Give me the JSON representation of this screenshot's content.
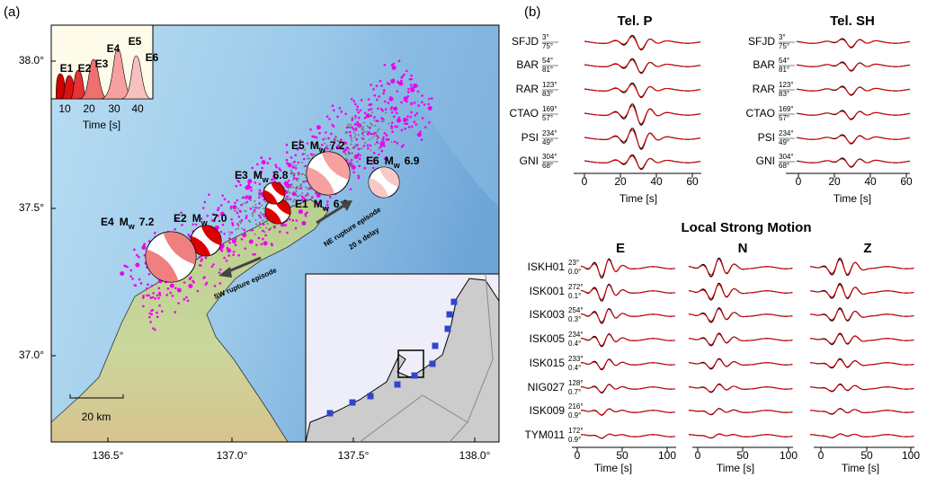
{
  "panel_a": {
    "label": "(a)",
    "lat_ticks": [
      "38.0°",
      "37.5°",
      "37.0°"
    ],
    "lon_ticks": [
      "136.5°",
      "137.0°",
      "137.5°",
      "138.0°"
    ],
    "scale_bar": "20 km",
    "mag_symbol": "M",
    "mag_sub": "w",
    "events": [
      {
        "id": "E1",
        "mag": "6.9"
      },
      {
        "id": "E2",
        "mag": "7.0"
      },
      {
        "id": "E3",
        "mag": "6.8"
      },
      {
        "id": "E4",
        "mag": "7.2"
      },
      {
        "id": "E5",
        "mag": "7.2"
      },
      {
        "id": "E6",
        "mag": "6.9"
      }
    ],
    "annotations": {
      "ne": "NE rupture episode",
      "delay": "20 s delay",
      "sw": "SW rupture episode"
    },
    "inset": {
      "events": [
        "E1",
        "E2",
        "E3",
        "E4",
        "E5",
        "E6"
      ],
      "xticks": [
        "10",
        "20",
        "30",
        "40"
      ],
      "xlabel": "Time [s]"
    }
  },
  "panel_b": {
    "label": "(b)",
    "teleseismic": {
      "panels": [
        {
          "title": "Tel. P"
        },
        {
          "title": "Tel. SH"
        }
      ],
      "stations": [
        {
          "name": "SFJD",
          "az": "3°",
          "dist": "75°"
        },
        {
          "name": "BAR",
          "az": "54°",
          "dist": "81°"
        },
        {
          "name": "RAR",
          "az": "123°",
          "dist": "83°"
        },
        {
          "name": "CTAO",
          "az": "169°",
          "dist": "57°"
        },
        {
          "name": "PSI",
          "az": "234°",
          "dist": "49°"
        },
        {
          "name": "GNI",
          "az": "304°",
          "dist": "68°"
        }
      ],
      "xticks": [
        "0",
        "20",
        "40",
        "60"
      ],
      "xlabel": "Time [s]"
    },
    "local": {
      "title": "Local Strong Motion",
      "components": [
        "E",
        "N",
        "Z"
      ],
      "stations": [
        {
          "name": "ISKH01",
          "az": "23°",
          "dist": "0.0°"
        },
        {
          "name": "ISK001",
          "az": "272°",
          "dist": "0.1°"
        },
        {
          "name": "ISK003",
          "az": "254°",
          "dist": "0.3°"
        },
        {
          "name": "ISK005",
          "az": "234°",
          "dist": "0.4°"
        },
        {
          "name": "ISK015",
          "az": "233°",
          "dist": "0.4°"
        },
        {
          "name": "NIG027",
          "az": "128°",
          "dist": "0.7°"
        },
        {
          "name": "ISK009",
          "az": "216°",
          "dist": "0.9°"
        },
        {
          "name": "TYM011",
          "az": "172°",
          "dist": "0.9°"
        }
      ],
      "xticks": [
        "0",
        "50",
        "100"
      ],
      "xlabel": "Time [s]"
    }
  }
}
